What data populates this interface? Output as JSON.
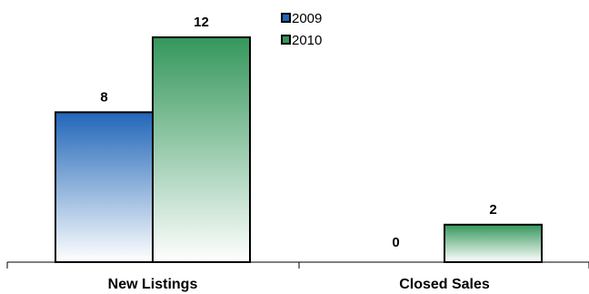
{
  "chart_data": {
    "type": "bar",
    "categories": [
      "New Listings",
      "Closed Sales"
    ],
    "series": [
      {
        "name": "2009",
        "values": [
          8,
          0
        ],
        "color": "#2166b8"
      },
      {
        "name": "2010",
        "values": [
          12,
          2
        ],
        "color": "#34975b"
      }
    ],
    "title": "",
    "xlabel": "",
    "ylabel": "",
    "ylim": [
      0,
      12
    ],
    "grid": false,
    "legend_position": "top-center",
    "data_labels": true
  }
}
